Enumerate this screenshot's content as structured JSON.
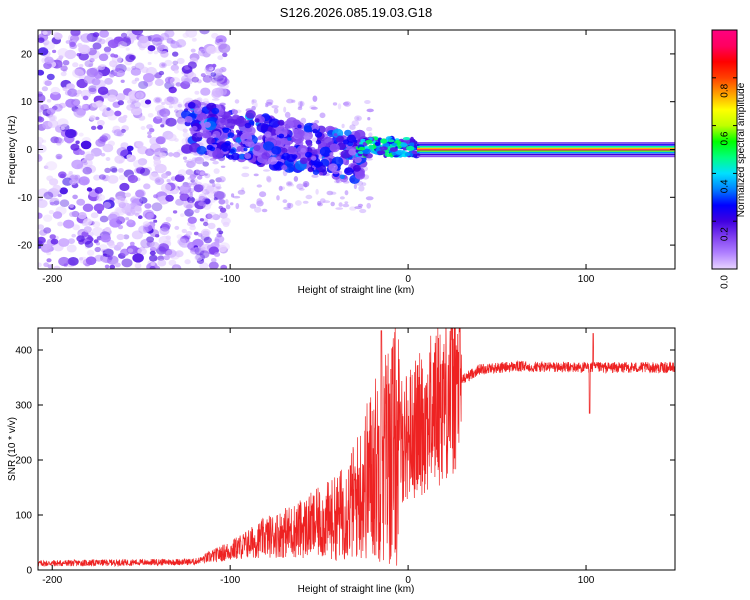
{
  "title": "S126.2026.085.19.03.G18",
  "chart_data": [
    {
      "type": "heatmap",
      "name": "spectrogram",
      "xlabel": "Height of straight line (km)",
      "ylabel": "Frequency (Hz)",
      "xlim": [
        -208,
        150
      ],
      "ylim": [
        -25,
        25
      ],
      "xticks": [
        -200,
        -100,
        0,
        100
      ],
      "yticks": [
        -20,
        -10,
        0,
        10,
        20
      ],
      "colorbar": {
        "label": "Normalized spectral amplitude",
        "range": [
          0,
          1
        ],
        "ticks": [
          "0.0",
          "0.2",
          "0.4",
          "0.6",
          "0.8"
        ],
        "colors": [
          "#e8d4ff",
          "#b080ff",
          "#8040f0",
          "#4000e0",
          "#0000ff",
          "#0080ff",
          "#00e0ff",
          "#00ff80",
          "#00ff00",
          "#c0ff00",
          "#ffff00",
          "#ffa000",
          "#ff4000",
          "#ff0000",
          "#ff0060",
          "#ff0080"
        ]
      },
      "regions": [
        {
          "name": "noise",
          "x": [
            -208,
            -112
          ],
          "freq_spread": 25,
          "amplitude": 0.05
        },
        {
          "name": "transition",
          "x": [
            -125,
            -25
          ],
          "freq_center": [
            5,
            -2
          ],
          "freq_spread": 5,
          "amplitude": 0.2
        },
        {
          "name": "stable_tone",
          "x": [
            5,
            150
          ],
          "freq": 0,
          "amplitude": 1.0
        }
      ]
    },
    {
      "type": "line",
      "name": "snr",
      "xlabel": "Height of straight line (km)",
      "ylabel": "SNR (10 * v/v)",
      "xlim": [
        -208,
        150
      ],
      "ylim": [
        0,
        440
      ],
      "xticks": [
        -200,
        -100,
        0,
        100
      ],
      "yticks": [
        0,
        100,
        200,
        300,
        400
      ],
      "color": "#ee2222",
      "profile": [
        {
          "x": -208,
          "snr": 12
        },
        {
          "x": -120,
          "snr": 15
        },
        {
          "x": -100,
          "snr": 35
        },
        {
          "x": -80,
          "snr": 60
        },
        {
          "x": -60,
          "snr": 75
        },
        {
          "x": -40,
          "snr": 95
        },
        {
          "x": -30,
          "snr": 125
        },
        {
          "x": -20,
          "snr": 180
        },
        {
          "x": -10,
          "snr": 220
        },
        {
          "x": 0,
          "snr": 245
        },
        {
          "x": 10,
          "snr": 275
        },
        {
          "x": 20,
          "snr": 315
        },
        {
          "x": 30,
          "snr": 345
        },
        {
          "x": 40,
          "snr": 365
        },
        {
          "x": 60,
          "snr": 370
        },
        {
          "x": 100,
          "snr": 368
        },
        {
          "x": 150,
          "snr": 368
        }
      ],
      "annotations": [
        {
          "x": -15,
          "snr": 435,
          "note": "spike"
        },
        {
          "x": 102,
          "snr": 285,
          "note": "dip"
        },
        {
          "x": 104,
          "snr": 430,
          "note": "spike"
        }
      ]
    }
  ]
}
